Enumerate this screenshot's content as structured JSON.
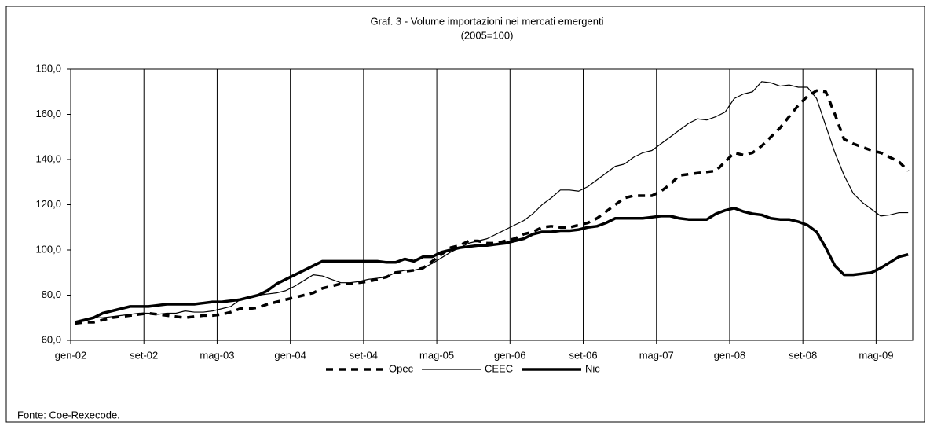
{
  "chart_data": {
    "type": "line",
    "title": "Graf. 3 - Volume importazioni nei mercati emergenti",
    "subtitle": "(2005=100)",
    "source": "Fonte: Coe-Rexecode.",
    "categories": [
      "gen-02",
      null,
      null,
      null,
      null,
      null,
      null,
      null,
      "set-02",
      null,
      null,
      null,
      null,
      null,
      null,
      null,
      "mag-03",
      null,
      null,
      null,
      null,
      null,
      null,
      null,
      "gen-04",
      null,
      null,
      null,
      null,
      null,
      null,
      null,
      "set-04",
      null,
      null,
      null,
      null,
      null,
      null,
      null,
      "mag-05",
      null,
      null,
      null,
      null,
      null,
      null,
      null,
      "gen-06",
      null,
      null,
      null,
      null,
      null,
      null,
      null,
      "set-06",
      null,
      null,
      null,
      null,
      null,
      null,
      null,
      "mag-07",
      null,
      null,
      null,
      null,
      null,
      null,
      null,
      "gen-08",
      null,
      null,
      null,
      null,
      null,
      null,
      null,
      "set-08",
      null,
      null,
      null,
      null,
      null,
      null,
      null,
      "mag-09",
      null,
      null,
      null
    ],
    "series": [
      {
        "name": "Opec",
        "color": "#000000",
        "style": "dashed",
        "values": [
          67.5,
          68,
          68,
          69,
          70,
          70.5,
          71,
          71.5,
          72,
          71.5,
          71,
          70.5,
          70,
          70.5,
          71,
          71,
          71.5,
          72.5,
          74,
          74,
          74.5,
          76,
          77,
          78,
          79,
          80,
          81,
          83,
          84,
          85,
          85,
          85.5,
          86,
          87,
          88,
          90,
          90.5,
          91,
          92,
          95,
          98,
          101,
          102,
          104,
          104,
          103,
          103,
          104,
          105,
          107,
          108,
          110,
          110.5,
          110,
          110,
          111,
          112,
          114,
          117,
          120,
          123,
          124,
          124,
          124,
          126,
          129,
          133,
          133.5,
          134,
          134.5,
          135,
          139,
          143,
          142,
          143,
          146,
          150,
          154,
          159,
          164,
          168,
          170.5,
          170,
          160,
          149,
          147,
          145.5,
          144,
          143,
          141,
          139,
          135
        ]
      },
      {
        "name": "CEEC",
        "color": "#000000",
        "style": "thin",
        "values": [
          68,
          68.5,
          70,
          70,
          70.5,
          71,
          71.5,
          72,
          72,
          71.5,
          72,
          72,
          73,
          72.5,
          72.5,
          73,
          74,
          75,
          78,
          79,
          80,
          80.5,
          81,
          82,
          84,
          86.5,
          89,
          88.5,
          87,
          85.5,
          85.5,
          86,
          87,
          87.5,
          88,
          90,
          91,
          91,
          92,
          94,
          96.5,
          99,
          101,
          103,
          104,
          105,
          107,
          109,
          111,
          113,
          116,
          120,
          123,
          126.5,
          126.5,
          126,
          128,
          131,
          134,
          137,
          138,
          141,
          143,
          144,
          147,
          150,
          153,
          156,
          158,
          157.5,
          159,
          161,
          167,
          169,
          170,
          174.5,
          174,
          172.5,
          173,
          172,
          172,
          167,
          155,
          143,
          133,
          125,
          121,
          118,
          115,
          115.5,
          116.5,
          116.5
        ]
      },
      {
        "name": "Nic",
        "color": "#000000",
        "style": "thick",
        "values": [
          68,
          69,
          70,
          72,
          73,
          74,
          75,
          75,
          75,
          75.5,
          76,
          76,
          76,
          76,
          76.5,
          77,
          77,
          77.5,
          78,
          79,
          80,
          82,
          85,
          87,
          89,
          91,
          93,
          95,
          95,
          95,
          95,
          95,
          95,
          95,
          94.5,
          94.5,
          96,
          95,
          97,
          97,
          99,
          100,
          101,
          101.5,
          102,
          102,
          102.5,
          103,
          104,
          105,
          107,
          108,
          108,
          108.5,
          108.5,
          109,
          110,
          110.5,
          112,
          114,
          114,
          114,
          114,
          114.5,
          115,
          115,
          114,
          113.5,
          113.5,
          113.5,
          116,
          117.5,
          118.5,
          117,
          116,
          115.5,
          114,
          113.5,
          113.5,
          112.5,
          111,
          108,
          101,
          93,
          89,
          89,
          89.5,
          90,
          92,
          94.5,
          97,
          98
        ]
      }
    ],
    "ylim": [
      60,
      180
    ],
    "yticks": [
      {
        "value": 60,
        "label": "60,0"
      },
      {
        "value": 80,
        "label": "80,0"
      },
      {
        "value": 100,
        "label": "100,0"
      },
      {
        "value": 120,
        "label": "120,0"
      },
      {
        "value": 140,
        "label": "140,0"
      },
      {
        "value": 160,
        "label": "160,0"
      },
      {
        "value": 180,
        "label": "180,0"
      }
    ],
    "grid": "vertical",
    "legend": "bottom"
  }
}
